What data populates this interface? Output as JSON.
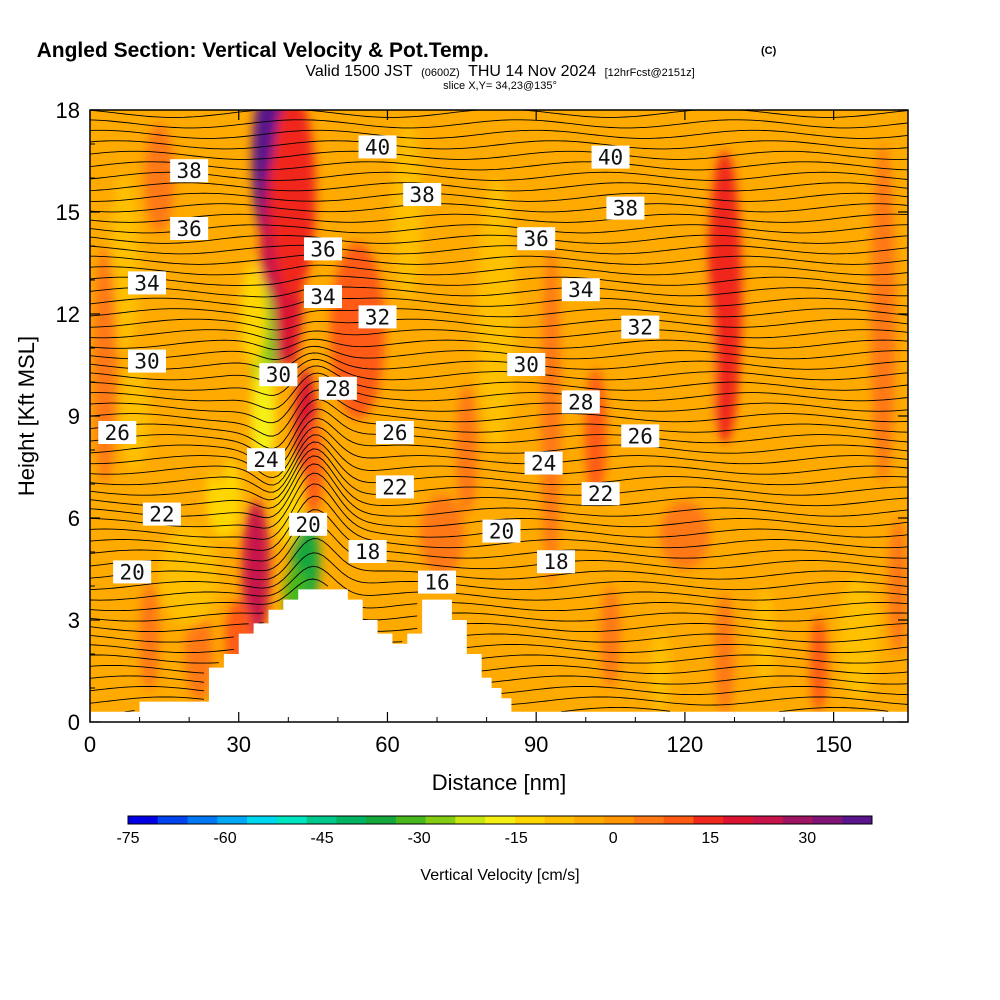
{
  "header": {
    "title": "Angled Section: Vertical Velocity & Pot.Temp.",
    "title_unit": "(C)",
    "valid_prefix": "Valid 1500 JST",
    "valid_utc": "(0600Z)",
    "valid_date": "THU 14 Nov 2024",
    "forecast": "[12hrFcst@2151z]",
    "slice": "slice X,Y= 34,23@135°"
  },
  "chart_data": {
    "type": "heatmap",
    "xlabel": "Distance [nm]",
    "ylabel": "Height [Kft MSL]",
    "xlim": [
      0,
      165
    ],
    "ylim": [
      0,
      18
    ],
    "x_ticks": [
      0,
      30,
      60,
      90,
      120,
      150
    ],
    "y_ticks": [
      0,
      3,
      6,
      9,
      12,
      15,
      18
    ],
    "colorbar": {
      "label": "Vertical Velocity [cm/s]",
      "range": [
        -75,
        40
      ],
      "ticks": [
        -75,
        -60,
        -45,
        -30,
        -15,
        0,
        15,
        30
      ],
      "colors": [
        "#0000e6",
        "#0044f0",
        "#0077f5",
        "#00a8f5",
        "#00d7f0",
        "#00e6c0",
        "#00c88c",
        "#00b464",
        "#14a83c",
        "#46b81e",
        "#82cc14",
        "#c8e614",
        "#f5f014",
        "#ffd700",
        "#ffc000",
        "#ffaa00",
        "#ff9600",
        "#ff7814",
        "#ff5a14",
        "#f0281e",
        "#dc1432",
        "#c8144b",
        "#a01464",
        "#821478",
        "#5a148c"
      ]
    },
    "terrain_profile": [
      [
        0,
        0.3
      ],
      [
        10,
        0.3
      ],
      [
        10,
        0.6
      ],
      [
        24,
        0.6
      ],
      [
        24,
        1.6
      ],
      [
        27,
        1.6
      ],
      [
        27,
        2.0
      ],
      [
        30,
        2.0
      ],
      [
        30,
        2.6
      ],
      [
        33,
        2.6
      ],
      [
        33,
        2.9
      ],
      [
        36,
        2.9
      ],
      [
        36,
        3.3
      ],
      [
        39,
        3.3
      ],
      [
        39,
        3.6
      ],
      [
        42,
        3.6
      ],
      [
        42,
        3.9
      ],
      [
        52,
        3.9
      ],
      [
        52,
        3.6
      ],
      [
        55,
        3.6
      ],
      [
        55,
        3.0
      ],
      [
        58,
        3.0
      ],
      [
        58,
        2.6
      ],
      [
        61,
        2.6
      ],
      [
        61,
        2.3
      ],
      [
        64,
        2.3
      ],
      [
        64,
        2.6
      ],
      [
        67,
        2.6
      ],
      [
        67,
        3.6
      ],
      [
        73,
        3.6
      ],
      [
        73,
        3.0
      ],
      [
        76,
        3.0
      ],
      [
        76,
        2.0
      ],
      [
        79,
        2.0
      ],
      [
        79,
        1.3
      ],
      [
        81,
        1.3
      ],
      [
        81,
        1.0
      ],
      [
        83,
        1.0
      ],
      [
        83,
        0.7
      ],
      [
        85,
        0.7
      ],
      [
        85,
        0.3
      ],
      [
        165,
        0.3
      ]
    ],
    "isentropes": {
      "unit": "C",
      "labels": [
        {
          "value": 40,
          "x": 58,
          "y": 16.9
        },
        {
          "value": 40,
          "x": 105,
          "y": 16.6
        },
        {
          "value": 38,
          "x": 20,
          "y": 16.2
        },
        {
          "value": 38,
          "x": 67,
          "y": 15.5
        },
        {
          "value": 38,
          "x": 108,
          "y": 15.1
        },
        {
          "value": 36,
          "x": 20,
          "y": 14.5
        },
        {
          "value": 36,
          "x": 47,
          "y": 13.9
        },
        {
          "value": 36,
          "x": 90,
          "y": 14.2
        },
        {
          "value": 34,
          "x": 11.5,
          "y": 12.9
        },
        {
          "value": 34,
          "x": 47,
          "y": 12.5
        },
        {
          "value": 34,
          "x": 99,
          "y": 12.7
        },
        {
          "value": 32,
          "x": 58,
          "y": 11.9
        },
        {
          "value": 32,
          "x": 111,
          "y": 11.6
        },
        {
          "value": 30,
          "x": 11.5,
          "y": 10.6
        },
        {
          "value": 30,
          "x": 38,
          "y": 10.2
        },
        {
          "value": 30,
          "x": 88,
          "y": 10.5
        },
        {
          "value": 28,
          "x": 50,
          "y": 9.8
        },
        {
          "value": 28,
          "x": 99,
          "y": 9.4
        },
        {
          "value": 26,
          "x": 5.5,
          "y": 8.5
        },
        {
          "value": 26,
          "x": 61.5,
          "y": 8.5
        },
        {
          "value": 26,
          "x": 111,
          "y": 8.4
        },
        {
          "value": 24,
          "x": 35.5,
          "y": 7.7
        },
        {
          "value": 24,
          "x": 91.5,
          "y": 7.6
        },
        {
          "value": 22,
          "x": 14.5,
          "y": 6.1
        },
        {
          "value": 22,
          "x": 61.5,
          "y": 6.9
        },
        {
          "value": 22,
          "x": 103,
          "y": 6.7
        },
        {
          "value": 20,
          "x": 8.5,
          "y": 4.4
        },
        {
          "value": 20,
          "x": 44,
          "y": 5.8
        },
        {
          "value": 20,
          "x": 83,
          "y": 5.6
        },
        {
          "value": 18,
          "x": 56,
          "y": 5.0
        },
        {
          "value": 18,
          "x": 94,
          "y": 4.7
        },
        {
          "value": 16,
          "x": 70,
          "y": 4.1
        }
      ]
    },
    "w_features": [
      {
        "x": 36.5,
        "y": 16.5,
        "rx": 3.8,
        "ry": 2.6,
        "w": 36
      },
      {
        "x": 37.5,
        "y": 13.5,
        "rx": 3.2,
        "ry": 3.2,
        "w": 25
      },
      {
        "x": 40.5,
        "y": 13.0,
        "rx": 2.4,
        "ry": 2.6,
        "w": 20
      },
      {
        "x": 41,
        "y": 15.5,
        "rx": 4.5,
        "ry": 3.0,
        "w": 15
      },
      {
        "x": 35,
        "y": 11.0,
        "rx": 2.5,
        "ry": 1.9,
        "w": -28
      },
      {
        "x": 35,
        "y": 9.0,
        "rx": 2.4,
        "ry": 1.6,
        "w": -16
      },
      {
        "x": 33,
        "y": 12.0,
        "rx": 2.6,
        "ry": 1.5,
        "w": -12
      },
      {
        "x": 43.5,
        "y": 8.8,
        "rx": 2.2,
        "ry": 1.6,
        "w": 20
      },
      {
        "x": 45,
        "y": 7.5,
        "rx": 2.0,
        "ry": 1.4,
        "w": 12
      },
      {
        "x": 54,
        "y": 11.5,
        "rx": 5.5,
        "ry": 2.6,
        "w": 8
      },
      {
        "x": 33.5,
        "y": 4.5,
        "rx": 2.8,
        "ry": 2.0,
        "w": 22
      },
      {
        "x": 30,
        "y": 2.5,
        "rx": 2.8,
        "ry": 1.1,
        "w": 12
      },
      {
        "x": 22,
        "y": 2.0,
        "rx": 2.8,
        "ry": 1.4,
        "w": 6
      },
      {
        "x": 43.5,
        "y": 4.7,
        "rx": 2.8,
        "ry": 1.4,
        "w": -34
      },
      {
        "x": 41.5,
        "y": 3.7,
        "rx": 2.3,
        "ry": 0.9,
        "w": -30
      },
      {
        "x": 40,
        "y": 6.5,
        "rx": 2.8,
        "ry": 1.3,
        "w": -12
      },
      {
        "x": 27,
        "y": 6.6,
        "rx": 3.5,
        "ry": 1.2,
        "w": -12
      },
      {
        "x": 20,
        "y": 4.3,
        "rx": 6.0,
        "ry": 1.5,
        "w": -10
      },
      {
        "x": 14,
        "y": 16.0,
        "rx": 3.0,
        "ry": 1.6,
        "w": 7
      },
      {
        "x": 7,
        "y": 13.5,
        "rx": 3.0,
        "ry": 2.6,
        "w": -8
      },
      {
        "x": 3,
        "y": 10.5,
        "rx": 2.4,
        "ry": 3.5,
        "w": 6
      },
      {
        "x": 9,
        "y": 9.0,
        "rx": 3.0,
        "ry": 1.6,
        "w": -8
      },
      {
        "x": 26,
        "y": 11.0,
        "rx": 3.0,
        "ry": 4.0,
        "w": -6
      },
      {
        "x": 64,
        "y": 15.0,
        "rx": 3.0,
        "ry": 2.6,
        "w": -8
      },
      {
        "x": 76,
        "y": 8.0,
        "rx": 2.2,
        "ry": 1.9,
        "w": 6
      },
      {
        "x": 82,
        "y": 12.0,
        "rx": 4.0,
        "ry": 4.0,
        "w": -8
      },
      {
        "x": 93,
        "y": 9.0,
        "rx": 2.0,
        "ry": 5.0,
        "w": 7
      },
      {
        "x": 102,
        "y": 8.5,
        "rx": 2.2,
        "ry": 1.9,
        "w": 12
      },
      {
        "x": 128,
        "y": 12.5,
        "rx": 3.5,
        "ry": 4.3,
        "w": 13
      },
      {
        "x": 122,
        "y": 10.0,
        "rx": 4.0,
        "ry": 3.5,
        "w": -6
      },
      {
        "x": 137,
        "y": 9.0,
        "rx": 4.0,
        "ry": 3.0,
        "w": -6
      },
      {
        "x": 150,
        "y": 14.0,
        "rx": 5.0,
        "ry": 3.0,
        "w": -6
      },
      {
        "x": 160,
        "y": 12.0,
        "rx": 2.5,
        "ry": 5.0,
        "w": 5
      },
      {
        "x": 163,
        "y": 4.0,
        "rx": 2.0,
        "ry": 2.0,
        "w": 6
      },
      {
        "x": 155,
        "y": 2.5,
        "rx": 4.0,
        "ry": 1.8,
        "w": -8
      },
      {
        "x": 147,
        "y": 1.7,
        "rx": 1.8,
        "ry": 1.4,
        "w": 10
      },
      {
        "x": 136,
        "y": 2.5,
        "rx": 2.0,
        "ry": 1.4,
        "w": -7
      },
      {
        "x": 128,
        "y": 2.0,
        "rx": 2.0,
        "ry": 1.8,
        "w": 7
      },
      {
        "x": 115,
        "y": 1.5,
        "rx": 2.0,
        "ry": 1.2,
        "w": -7
      },
      {
        "x": 105,
        "y": 2.5,
        "rx": 2.0,
        "ry": 1.5,
        "w": 6
      },
      {
        "x": 97,
        "y": 3.2,
        "rx": 2.5,
        "ry": 1.3,
        "w": -6
      },
      {
        "x": 71,
        "y": 5.5,
        "rx": 4.5,
        "ry": 1.2,
        "w": 6
      },
      {
        "x": 120,
        "y": 5.5,
        "rx": 5.0,
        "ry": 1.0,
        "w": 6
      },
      {
        "x": 12,
        "y": 2.5,
        "rx": 2.0,
        "ry": 1.6,
        "w": 7
      }
    ]
  }
}
